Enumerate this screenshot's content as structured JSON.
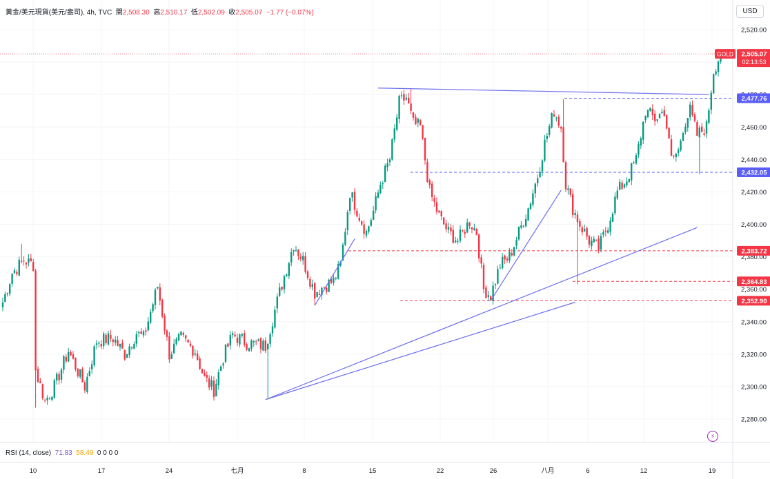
{
  "header": {
    "title": "黃金/美元現貨(美元/盎司), 4h, TVC",
    "open_label": "開",
    "open": "2,508.30",
    "high_label": "高",
    "high": "2,510.17",
    "low_label": "低",
    "low": "2,502.09",
    "close_label": "收",
    "close": "2,505.07",
    "change": "−1.77 (−0.07%)"
  },
  "currency": "USD",
  "symbol_tag": "GOLD",
  "price_tag": {
    "price": "2,505.07",
    "countdown": "02:13:53"
  },
  "rsi": {
    "label": "RSI (14, close)",
    "value1": "71.83",
    "value2": "58.49",
    "extra": "0 0 0 0"
  },
  "colors": {
    "up": "#089981",
    "down": "#f23645",
    "line": "#6a6df0",
    "resistance": "#5b5ef5",
    "support": "#f23645"
  },
  "chart_data": {
    "type": "candlestick",
    "symbol": "GOLD",
    "timeframe": "4h",
    "x_ticks": [
      "10",
      "17",
      "24",
      "七月",
      "8",
      "15",
      "22",
      "26",
      "八月",
      "6",
      "12",
      "19"
    ],
    "y_ticks": [
      "2,280.00",
      "2,300.00",
      "2,320.00",
      "2,340.00",
      "2,360.00",
      "2,380.00",
      "2,400.00",
      "2,420.00",
      "2,440.00",
      "2,460.00",
      "2,480.00",
      "2,500.00",
      "2,520.00"
    ],
    "ylim": [
      2266,
      2528
    ],
    "bars": 307,
    "anchors": [
      [
        0,
        2352
      ],
      [
        4,
        2370
      ],
      [
        9,
        2378
      ],
      [
        13,
        2375
      ],
      [
        14,
        2310
      ],
      [
        18,
        2291
      ],
      [
        22,
        2300
      ],
      [
        28,
        2322
      ],
      [
        35,
        2300
      ],
      [
        40,
        2328
      ],
      [
        47,
        2330
      ],
      [
        52,
        2320
      ],
      [
        57,
        2333
      ],
      [
        60,
        2330
      ],
      [
        66,
        2362
      ],
      [
        71,
        2320
      ],
      [
        76,
        2330
      ],
      [
        82,
        2322
      ],
      [
        86,
        2305
      ],
      [
        90,
        2298
      ],
      [
        94,
        2318
      ],
      [
        98,
        2332
      ],
      [
        104,
        2327
      ],
      [
        112,
        2325
      ],
      [
        118,
        2358
      ],
      [
        124,
        2388
      ],
      [
        128,
        2378
      ],
      [
        133,
        2358
      ],
      [
        137,
        2362
      ],
      [
        141,
        2365
      ],
      [
        144,
        2375
      ],
      [
        148,
        2420
      ],
      [
        152,
        2405
      ],
      [
        155,
        2395
      ],
      [
        158,
        2408
      ],
      [
        161,
        2425
      ],
      [
        165,
        2440
      ],
      [
        169,
        2475
      ],
      [
        172,
        2478
      ],
      [
        175,
        2462
      ],
      [
        178,
        2460
      ],
      [
        182,
        2420
      ],
      [
        186,
        2405
      ],
      [
        190,
        2395
      ],
      [
        194,
        2390
      ],
      [
        199,
        2402
      ],
      [
        202,
        2395
      ],
      [
        205,
        2360
      ],
      [
        208,
        2356
      ],
      [
        212,
        2375
      ],
      [
        216,
        2380
      ],
      [
        220,
        2395
      ],
      [
        224,
        2410
      ],
      [
        228,
        2430
      ],
      [
        231,
        2450
      ],
      [
        235,
        2470
      ],
      [
        238,
        2460
      ],
      [
        240,
        2425
      ],
      [
        243,
        2410
      ],
      [
        246,
        2400
      ],
      [
        250,
        2390
      ],
      [
        254,
        2385
      ],
      [
        258,
        2400
      ],
      [
        262,
        2420
      ],
      [
        266,
        2428
      ],
      [
        270,
        2440
      ],
      [
        274,
        2470
      ],
      [
        278,
        2465
      ],
      [
        282,
        2470
      ],
      [
        285,
        2440
      ],
      [
        288,
        2445
      ],
      [
        290,
        2460
      ],
      [
        293,
        2470
      ],
      [
        296,
        2455
      ],
      [
        300,
        2460
      ],
      [
        303,
        2495
      ],
      [
        306,
        2505
      ]
    ],
    "wicks": [
      {
        "bar": 8,
        "high": 2388
      },
      {
        "bar": 14,
        "low": 2287
      },
      {
        "bar": 113,
        "low": 2293
      },
      {
        "bar": 133,
        "low": 2350
      },
      {
        "bar": 174,
        "high": 2484
      },
      {
        "bar": 208,
        "low": 2353
      },
      {
        "bar": 239,
        "high": 2477
      },
      {
        "bar": 245,
        "low": 2363
      },
      {
        "bar": 297,
        "low": 2431
      }
    ],
    "horizontal_levels": [
      {
        "price": 2477.76,
        "label": "2,477.76",
        "color": "#5b5ef5",
        "style": "dashed"
      },
      {
        "price": 2432.05,
        "label": "2,432.05",
        "color": "#5b5ef5",
        "style": "dashed"
      },
      {
        "price": 2383.72,
        "label": "2,383.72",
        "color": "#f23645",
        "style": "dashed"
      },
      {
        "price": 2364.83,
        "label": "2,364.83",
        "color": "#f23645",
        "style": "dashed"
      },
      {
        "price": 2352.9,
        "label": "2,352.90",
        "color": "#f23645",
        "style": "dashed"
      }
    ],
    "trendlines": [
      {
        "from": [
          112,
          2292
        ],
        "to": [
          244,
          2352
        ]
      },
      {
        "from": [
          112,
          2292
        ],
        "to": [
          296,
          2398
        ]
      },
      {
        "from": [
          133,
          2350
        ],
        "to": [
          150,
          2391
        ]
      },
      {
        "from": [
          208,
          2353
        ],
        "to": [
          238,
          2421
        ]
      },
      {
        "from": [
          160,
          2484
        ],
        "to": [
          301,
          2480
        ]
      }
    ],
    "last_price": 2505.07
  }
}
